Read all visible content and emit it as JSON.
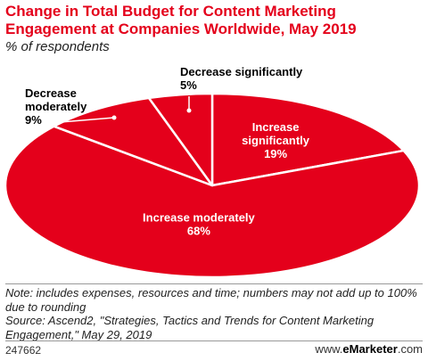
{
  "title": "Change in Total Budget for Content Marketing Engagement at Companies Worldwide, May 2019",
  "subtitle": "% of respondents",
  "chart_data": {
    "type": "pie",
    "title": "Change in Total Budget for Content Marketing Engagement at Companies Worldwide, May 2019",
    "subtitle": "% of respondents",
    "unit": "%",
    "slices": [
      {
        "label": "Increase significantly",
        "value": 19
      },
      {
        "label": "Increase moderately",
        "value": 68
      },
      {
        "label": "Decrease moderately",
        "value": 9
      },
      {
        "label": "Decrease significantly",
        "value": 5
      }
    ],
    "colors": {
      "slice": "#e4001b",
      "edge": "#ffffff",
      "label_inside": "#ffffff",
      "label_outside": "#000000"
    }
  },
  "notes": {
    "note": "Note: includes expenses, resources and time; numbers may not add up to 100% due to rounding",
    "source": "Source: Ascend2, \"Strategies, Tactics and Trends for Content Marketing Engagement,\" May 29, 2019"
  },
  "footer": {
    "chart_id": "247662",
    "brand_prefix": "www.",
    "brand_name": "eMarketer",
    "brand_suffix": ".com"
  }
}
